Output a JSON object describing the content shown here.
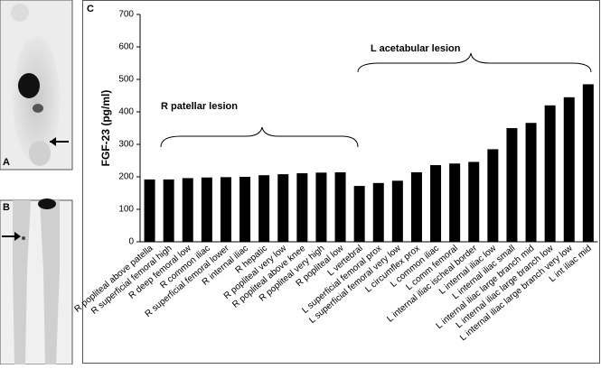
{
  "panels": {
    "a": "A",
    "b": "B"
  },
  "chart_data": {
    "type": "bar",
    "panel_label": "C",
    "ylabel": "FGF-23 (pg/ml)",
    "annotations": [
      "R patellar lesion",
      "L acetabular lesion"
    ],
    "categories": [
      "R popliteal above patella",
      "R superficial femoral high",
      "R deep femoral low",
      "R common iliac",
      "R superficial femoral lower",
      "R internal iliac",
      "R hepatic",
      "R popliteal very low",
      "R popliteal above knee",
      "R popliteal very high",
      "R popliteal low",
      "L vertebral",
      "L superficial femoral prox",
      "L superficial femoral very low",
      "L circumflex prox",
      "L common iliac",
      "L comm femoral",
      "L internal iliac ischeal border",
      "L internal iliac low",
      "L internal iliac small",
      "L internal iliac large branch mid",
      "L internal iliac large branch low",
      "L internal iliac large branch very low",
      "L int iliac mid"
    ],
    "values": [
      192,
      192,
      196,
      198,
      199,
      200,
      205,
      208,
      211,
      213,
      214,
      172,
      181,
      188,
      214,
      236,
      241,
      246,
      285,
      350,
      366,
      420,
      445,
      485
    ],
    "color": "#000000",
    "ylim": [
      0,
      700
    ],
    "yticks": [
      0,
      100,
      200,
      300,
      400,
      500,
      600,
      700
    ],
    "grid": false
  }
}
